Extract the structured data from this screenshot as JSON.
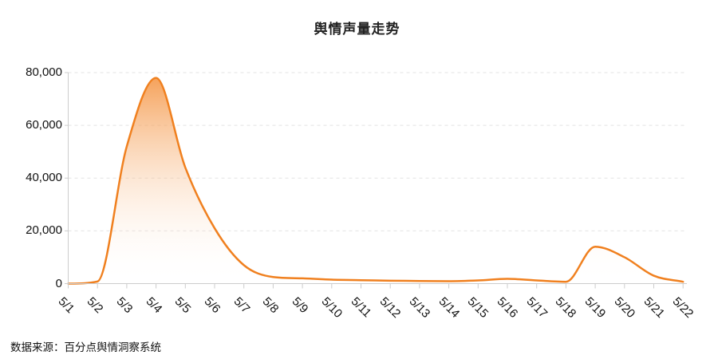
{
  "title": "舆情声量走势",
  "footer": "数据来源：百分点舆情洞察系统",
  "chart_data": {
    "type": "area",
    "title": "舆情声量走势",
    "xlabel": "",
    "ylabel": "",
    "x": [
      "5/1",
      "5/2",
      "5/3",
      "5/4",
      "5/5",
      "5/6",
      "5/7",
      "5/8",
      "5/9",
      "5/10",
      "5/11",
      "5/12",
      "5/13",
      "5/14",
      "5/15",
      "5/16",
      "5/17",
      "5/18",
      "5/19",
      "5/20",
      "5/21",
      "5/22"
    ],
    "values": [
      0,
      800,
      52000,
      78000,
      44000,
      21000,
      7000,
      2500,
      2000,
      1500,
      1300,
      1100,
      1000,
      900,
      1200,
      1800,
      1200,
      700,
      14000,
      10000,
      3000,
      700
    ],
    "ylim": [
      0,
      80000
    ],
    "y_ticks": [
      0,
      20000,
      40000,
      60000,
      80000
    ],
    "y_tick_labels": [
      "0",
      "20,000",
      "40,000",
      "60,000",
      "80,000"
    ],
    "x_label_rotation_deg": 45,
    "grid": "dashed horizontal",
    "legend": false,
    "annotations": {
      "source_note": "数据来源：百分点舆情洞察系统"
    },
    "colors": {
      "line": "#f0801f",
      "fill_top": "rgba(243,136,45,0.82)",
      "fill_bottom": "rgba(255,255,255,0)",
      "axis": "#cccccc",
      "gridline": "#e3e3e3",
      "text": "#111111",
      "background": "#ffffff"
    },
    "line_width": 2.5
  }
}
